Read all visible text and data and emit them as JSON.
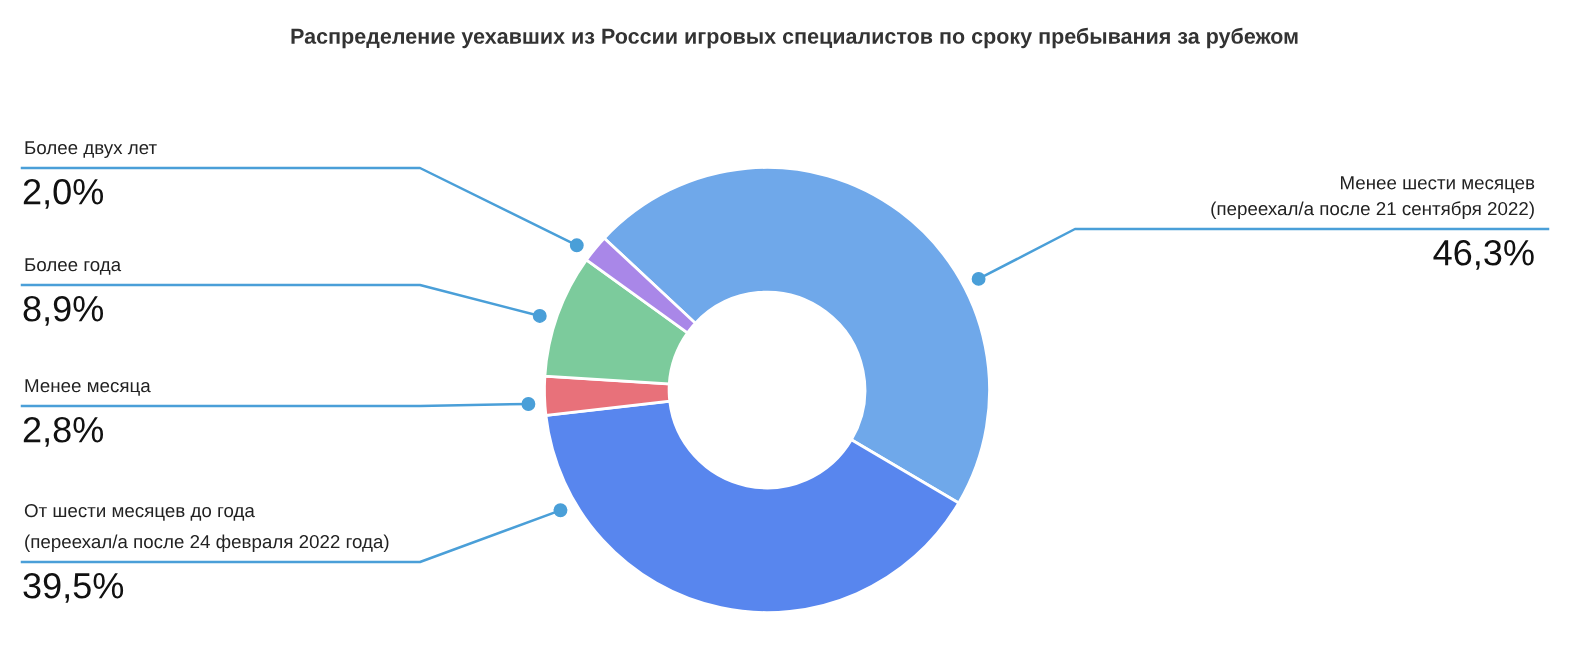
{
  "chart_data": {
    "type": "donut",
    "title": "Распределение уехавших из России игровых специалистов по сроку пребывания за рубежом",
    "categories": [
      "Менее шести месяцев\n(переехал/а после 21 сентября 2022)",
      "От шести месяцев до года\n(переехал/а после 24 февраля 2022 года)",
      "Менее месяца",
      "Более года",
      "Более двух лет"
    ],
    "values": [
      46.3,
      39.5,
      2.8,
      8.9,
      2.0
    ],
    "colors": [
      "#6fa8ea",
      "#5886ee",
      "#e8717a",
      "#7ccb9c",
      "#a987e8"
    ],
    "value_labels": [
      "46,3%",
      "39,5%",
      "2,8%",
      "8,9%",
      "2,0%"
    ]
  }
}
